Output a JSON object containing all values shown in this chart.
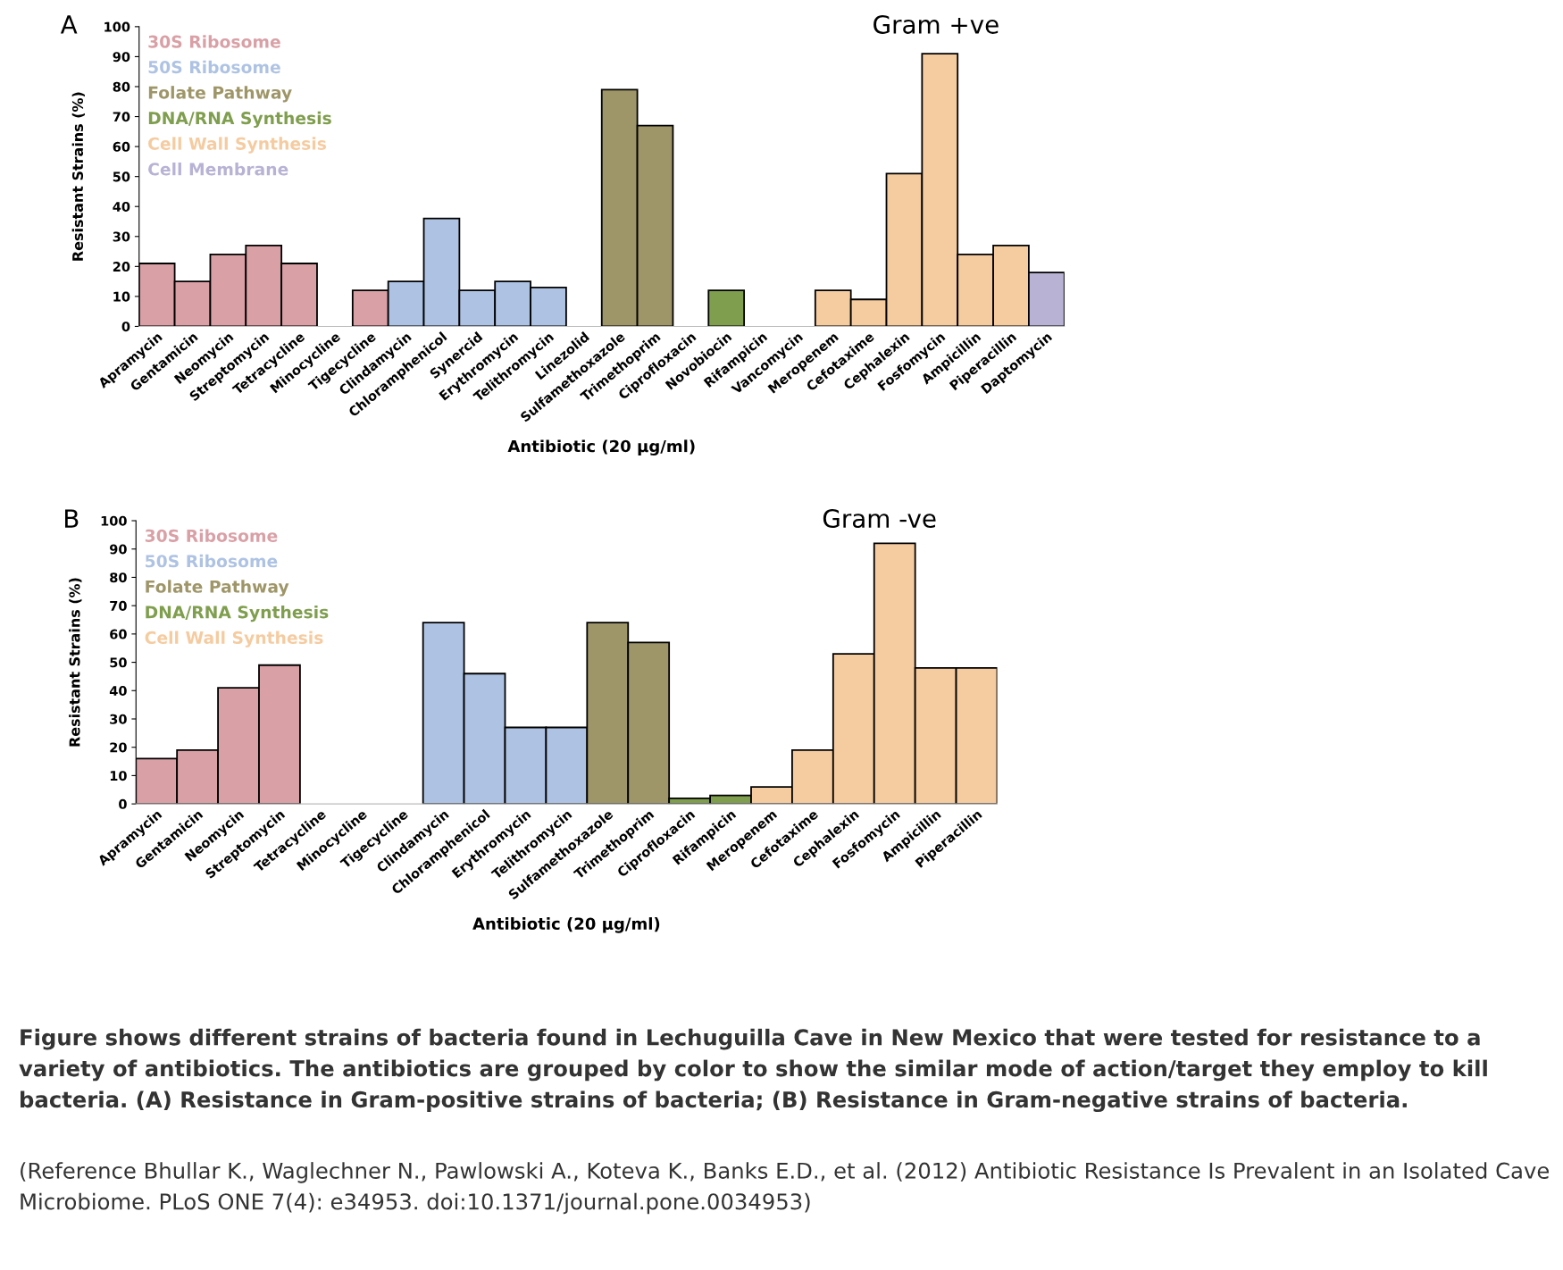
{
  "chart_data": [
    {
      "type": "bar",
      "ylabel": "Resistant Strains (%)",
      "xlabel": "Antibiotic (20 µg/ml)",
      "annotations": [
        "A",
        "Gram +ve"
      ],
      "categories": [
        "Apramycin",
        "Gentamicin",
        "Neomycin",
        "Streptomycin",
        "Tetracycline",
        "Minocycline",
        "Tigecycline",
        "Clindamycin",
        "Chloramphenicol",
        "Synercid",
        "Erythromycin",
        "Telithromycin",
        "Linezolid",
        "Sulfamethoxazole",
        "Trimethoprim",
        "Ciprofloxacin",
        "Novobiocin",
        "Rifampicin",
        "Vancomycin",
        "Meropenem",
        "Cefotaxime",
        "Cephalexin",
        "Fosfomycin",
        "Ampicillin",
        "Piperacillin",
        "Daptomycin"
      ],
      "series": [
        {
          "name": "30S Ribosome",
          "color": "#d9a0a6",
          "values": [
            21,
            15,
            24,
            27,
            21,
            null,
            12,
            null,
            null,
            null,
            null,
            null,
            null,
            null,
            null,
            null,
            null,
            null,
            null,
            null,
            null,
            null,
            null,
            null,
            null,
            null
          ]
        },
        {
          "name": "50S Ribosome",
          "color": "#aec3e3",
          "values": [
            null,
            null,
            null,
            null,
            null,
            null,
            null,
            15,
            36,
            12,
            15,
            13,
            null,
            null,
            null,
            null,
            null,
            null,
            null,
            null,
            null,
            null,
            null,
            null,
            null,
            null
          ]
        },
        {
          "name": "Folate Pathway",
          "color": "#9e9668",
          "values": [
            null,
            null,
            null,
            null,
            null,
            null,
            null,
            null,
            null,
            null,
            null,
            null,
            null,
            79,
            67,
            null,
            null,
            null,
            null,
            null,
            null,
            null,
            null,
            null,
            null,
            null
          ]
        },
        {
          "name": "DNA/RNA Synthesis",
          "color": "#7f9e4e",
          "values": [
            null,
            null,
            null,
            null,
            null,
            null,
            null,
            null,
            null,
            null,
            null,
            null,
            null,
            null,
            null,
            null,
            12,
            null,
            null,
            null,
            null,
            null,
            null,
            null,
            null,
            null
          ]
        },
        {
          "name": "Cell Wall Synthesis",
          "color": "#f5cba0",
          "values": [
            null,
            null,
            null,
            null,
            null,
            null,
            null,
            null,
            null,
            null,
            null,
            null,
            null,
            null,
            null,
            null,
            null,
            null,
            null,
            12,
            9,
            51,
            91,
            24,
            27,
            null
          ]
        },
        {
          "name": "Cell Membrane",
          "color": "#b8b2d4",
          "values": [
            null,
            null,
            null,
            null,
            null,
            null,
            null,
            null,
            null,
            null,
            null,
            null,
            null,
            null,
            null,
            null,
            null,
            null,
            null,
            null,
            null,
            null,
            null,
            null,
            null,
            18
          ]
        }
      ],
      "ylim": [
        0,
        100
      ],
      "yticks": [
        0,
        10,
        20,
        30,
        40,
        50,
        60,
        70,
        80,
        90,
        100
      ],
      "grid": false,
      "legend": "top left"
    },
    {
      "type": "bar",
      "ylabel": "Resistant Strains (%)",
      "xlabel": "Antibiotic (20 µg/ml)",
      "annotations": [
        "B",
        "Gram -ve",
        "Figure shows different strains of bacteria found in Lechuguilla Cave in New Mexico that were tested for resistance to a variety of antibiotics. The antibiotics are grouped by color to show the similar mode of action/target they employ to kill bacteria. (A) Resistance in Gram-positive strains of bacteria; (B) Resistance in Gram-negative strains of bacteria.",
        "(Reference Bhullar K., Waglechner N., Pawlowski A., Koteva K., Banks E.D., et al. (2012) Antibiotic Resistance Is Prevalent in an Isolated Cave Microbiome. PLoS ONE 7(4): e34953. doi:10.1371/journal.pone.0034953)"
      ],
      "categories": [
        "Apramycin",
        "Gentamicin",
        "Neomycin",
        "Streptomycin",
        "Tetracycline",
        "Minocycline",
        "Tigecycline",
        "Clindamycin",
        "Chloramphenicol",
        "Erythromycin",
        "Telithromycin",
        "Sulfamethoxazole",
        "Trimethoprim",
        "Ciprofloxacin",
        "Rifampicin",
        "Meropenem",
        "Cefotaxime",
        "Cephalexin",
        "Fosfomycin",
        "Ampicillin",
        "Piperacillin"
      ],
      "series": [
        {
          "name": "30S Ribosome",
          "color": "#d9a0a6",
          "values": [
            16,
            19,
            41,
            49,
            null,
            null,
            null,
            null,
            null,
            null,
            null,
            null,
            null,
            null,
            null,
            null,
            null,
            null,
            null,
            null,
            null
          ]
        },
        {
          "name": "50S Ribosome",
          "color": "#aec3e3",
          "values": [
            null,
            null,
            null,
            null,
            null,
            null,
            null,
            64,
            46,
            27,
            27,
            null,
            null,
            null,
            null,
            null,
            null,
            null,
            null,
            null,
            null
          ]
        },
        {
          "name": "Folate Pathway",
          "color": "#9e9668",
          "values": [
            null,
            null,
            null,
            null,
            null,
            null,
            null,
            null,
            null,
            null,
            null,
            64,
            57,
            null,
            null,
            null,
            null,
            null,
            null,
            null,
            null
          ]
        },
        {
          "name": "DNA/RNA Synthesis",
          "color": "#7f9e4e",
          "values": [
            null,
            null,
            null,
            null,
            null,
            null,
            null,
            null,
            null,
            null,
            null,
            null,
            null,
            2,
            3,
            null,
            null,
            null,
            null,
            null,
            null
          ]
        },
        {
          "name": "Cell Wall Synthesis",
          "color": "#f5cba0",
          "values": [
            null,
            null,
            null,
            null,
            null,
            null,
            null,
            null,
            null,
            null,
            null,
            null,
            null,
            null,
            null,
            6,
            19,
            53,
            92,
            48,
            48
          ]
        }
      ],
      "ylim": [
        0,
        100
      ],
      "yticks": [
        0,
        10,
        20,
        30,
        40,
        50,
        60,
        70,
        80,
        90,
        100
      ],
      "grid": false,
      "legend": "top left"
    }
  ]
}
